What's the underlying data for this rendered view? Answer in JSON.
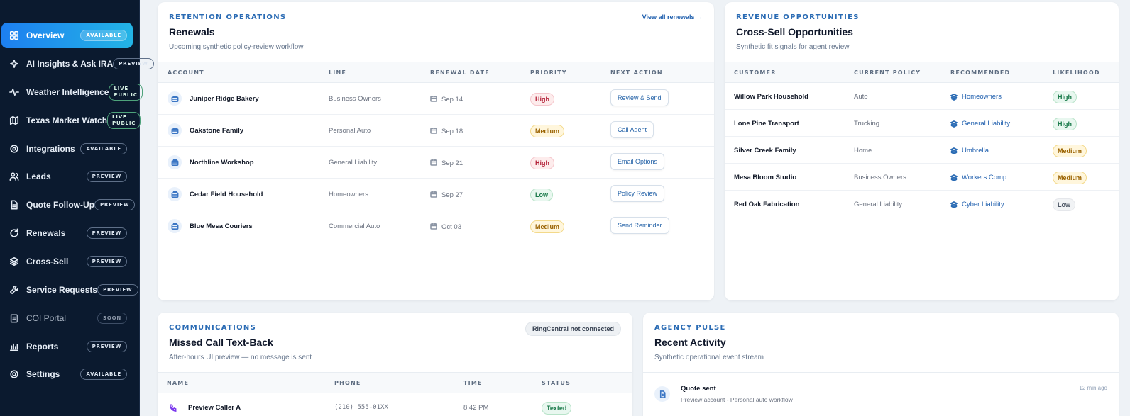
{
  "sidebar": {
    "items": [
      {
        "label": "Overview",
        "badge": "AVAILABLE",
        "icon": "grid-icon"
      },
      {
        "label": "AI Insights & Ask IRA",
        "badge": "PREVIEW",
        "icon": "sparkle-icon"
      },
      {
        "label": "Weather Intelligence",
        "badge_line1": "LIVE",
        "badge_line2": "PUBLIC",
        "icon": "pulse-icon"
      },
      {
        "label": "Texas Market Watch",
        "badge_line1": "LIVE",
        "badge_line2": "PUBLIC",
        "icon": "map-icon"
      },
      {
        "label": "Integrations",
        "badge": "AVAILABLE",
        "icon": "settings-icon"
      },
      {
        "label": "Leads",
        "badge": "PREVIEW",
        "icon": "users-icon"
      },
      {
        "label": "Quote Follow-Up",
        "badge": "PREVIEW",
        "icon": "document-icon"
      },
      {
        "label": "Renewals",
        "badge": "PREVIEW",
        "icon": "refresh-icon"
      },
      {
        "label": "Cross-Sell",
        "badge": "PREVIEW",
        "icon": "layers-icon"
      },
      {
        "label": "Service Requests",
        "badge": "PREVIEW",
        "icon": "wrench-icon"
      },
      {
        "label": "COI Portal",
        "badge": "SOON",
        "icon": "clipboard-icon"
      },
      {
        "label": "Reports",
        "badge": "PREVIEW",
        "icon": "bar-chart-icon"
      },
      {
        "label": "Settings",
        "badge": "AVAILABLE",
        "icon": "gear-icon"
      }
    ]
  },
  "renewals": {
    "eyebrow": "RETENTION OPERATIONS",
    "title": "Renewals",
    "subtitle": "Upcoming synthetic policy-review workflow",
    "view_all": "View all renewals →",
    "columns": [
      "ACCOUNT",
      "LINE",
      "RENEWAL DATE",
      "PRIORITY",
      "NEXT ACTION"
    ],
    "rows": [
      {
        "account": "Juniper Ridge Bakery",
        "line": "Business Owners",
        "date": "Sep 14",
        "priority": "High",
        "action": "Review & Send"
      },
      {
        "account": "Oakstone Family",
        "line": "Personal Auto",
        "date": "Sep 18",
        "priority": "Medium",
        "action": "Call Agent"
      },
      {
        "account": "Northline Workshop",
        "line": "General Liability",
        "date": "Sep 21",
        "priority": "High",
        "action": "Email Options"
      },
      {
        "account": "Cedar Field Household",
        "line": "Homeowners",
        "date": "Sep 27",
        "priority": "Low",
        "action": "Policy Review"
      },
      {
        "account": "Blue Mesa Couriers",
        "line": "Commercial Auto",
        "date": "Oct 03",
        "priority": "Medium",
        "action": "Send Reminder"
      }
    ]
  },
  "crosssell": {
    "eyebrow": "REVENUE OPPORTUNITIES",
    "title": "Cross-Sell Opportunities",
    "subtitle": "Synthetic fit signals for agent review",
    "columns": [
      "CUSTOMER",
      "CURRENT POLICY",
      "RECOMMENDED",
      "LIKELIHOOD"
    ],
    "rows": [
      {
        "customer": "Willow Park Household",
        "current": "Auto",
        "recommended": "Homeowners",
        "likelihood": "High"
      },
      {
        "customer": "Lone Pine Transport",
        "current": "Trucking",
        "recommended": "General Liability",
        "likelihood": "High"
      },
      {
        "customer": "Silver Creek Family",
        "current": "Home",
        "recommended": "Umbrella",
        "likelihood": "Medium"
      },
      {
        "customer": "Mesa Bloom Studio",
        "current": "Business Owners",
        "recommended": "Workers Comp",
        "likelihood": "Medium"
      },
      {
        "customer": "Red Oak Fabrication",
        "current": "General Liability",
        "recommended": "Cyber Liability",
        "likelihood": "Low"
      }
    ]
  },
  "communications": {
    "eyebrow": "COMMUNICATIONS",
    "title": "Missed Call Text-Back",
    "subtitle": "After-hours UI preview — no message is sent",
    "badge": "RingCentral not connected",
    "columns": [
      "NAME",
      "PHONE",
      "TIME",
      "STATUS"
    ],
    "rows": [
      {
        "name": "Preview Caller A",
        "phone": "(210) 555-01XX",
        "time": "8:42 PM",
        "status": "Texted"
      }
    ]
  },
  "pulse": {
    "eyebrow": "AGENCY PULSE",
    "title": "Recent Activity",
    "subtitle": "Synthetic operational event stream",
    "events": [
      {
        "title": "Quote sent",
        "detail": "Preview account - Personal auto workflow",
        "time": "12 min ago"
      }
    ]
  }
}
